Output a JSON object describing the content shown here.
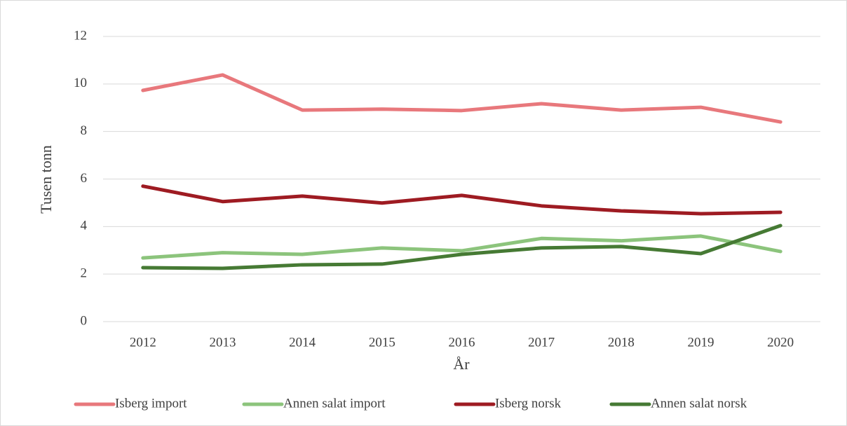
{
  "chart_data": {
    "type": "line",
    "xlabel": "År",
    "ylabel": "Tusen tonn",
    "categories": [
      "2012",
      "2013",
      "2014",
      "2015",
      "2016",
      "2017",
      "2018",
      "2019",
      "2020"
    ],
    "series": [
      {
        "name": "Isberg import",
        "color": "#e8787c",
        "values": [
          9.73,
          10.38,
          8.9,
          8.94,
          8.88,
          9.17,
          8.9,
          9.02,
          8.4
        ]
      },
      {
        "name": "Annen salat import",
        "color": "#8cc47c",
        "values": [
          2.68,
          2.9,
          2.83,
          3.1,
          2.98,
          3.5,
          3.4,
          3.6,
          2.95
        ]
      },
      {
        "name": "Isberg norsk",
        "color": "#9e1b22",
        "values": [
          5.7,
          5.05,
          5.28,
          4.99,
          5.31,
          4.87,
          4.66,
          4.54,
          4.6
        ]
      },
      {
        "name": "Annen salat norsk",
        "color": "#467a34",
        "values": [
          2.27,
          2.24,
          2.39,
          2.42,
          2.83,
          3.1,
          3.16,
          2.86,
          4.04
        ]
      }
    ],
    "ylim": [
      0,
      12
    ],
    "yticks": [
      0,
      2,
      4,
      6,
      8,
      10,
      12
    ],
    "grid": true,
    "legend": "bottom"
  }
}
